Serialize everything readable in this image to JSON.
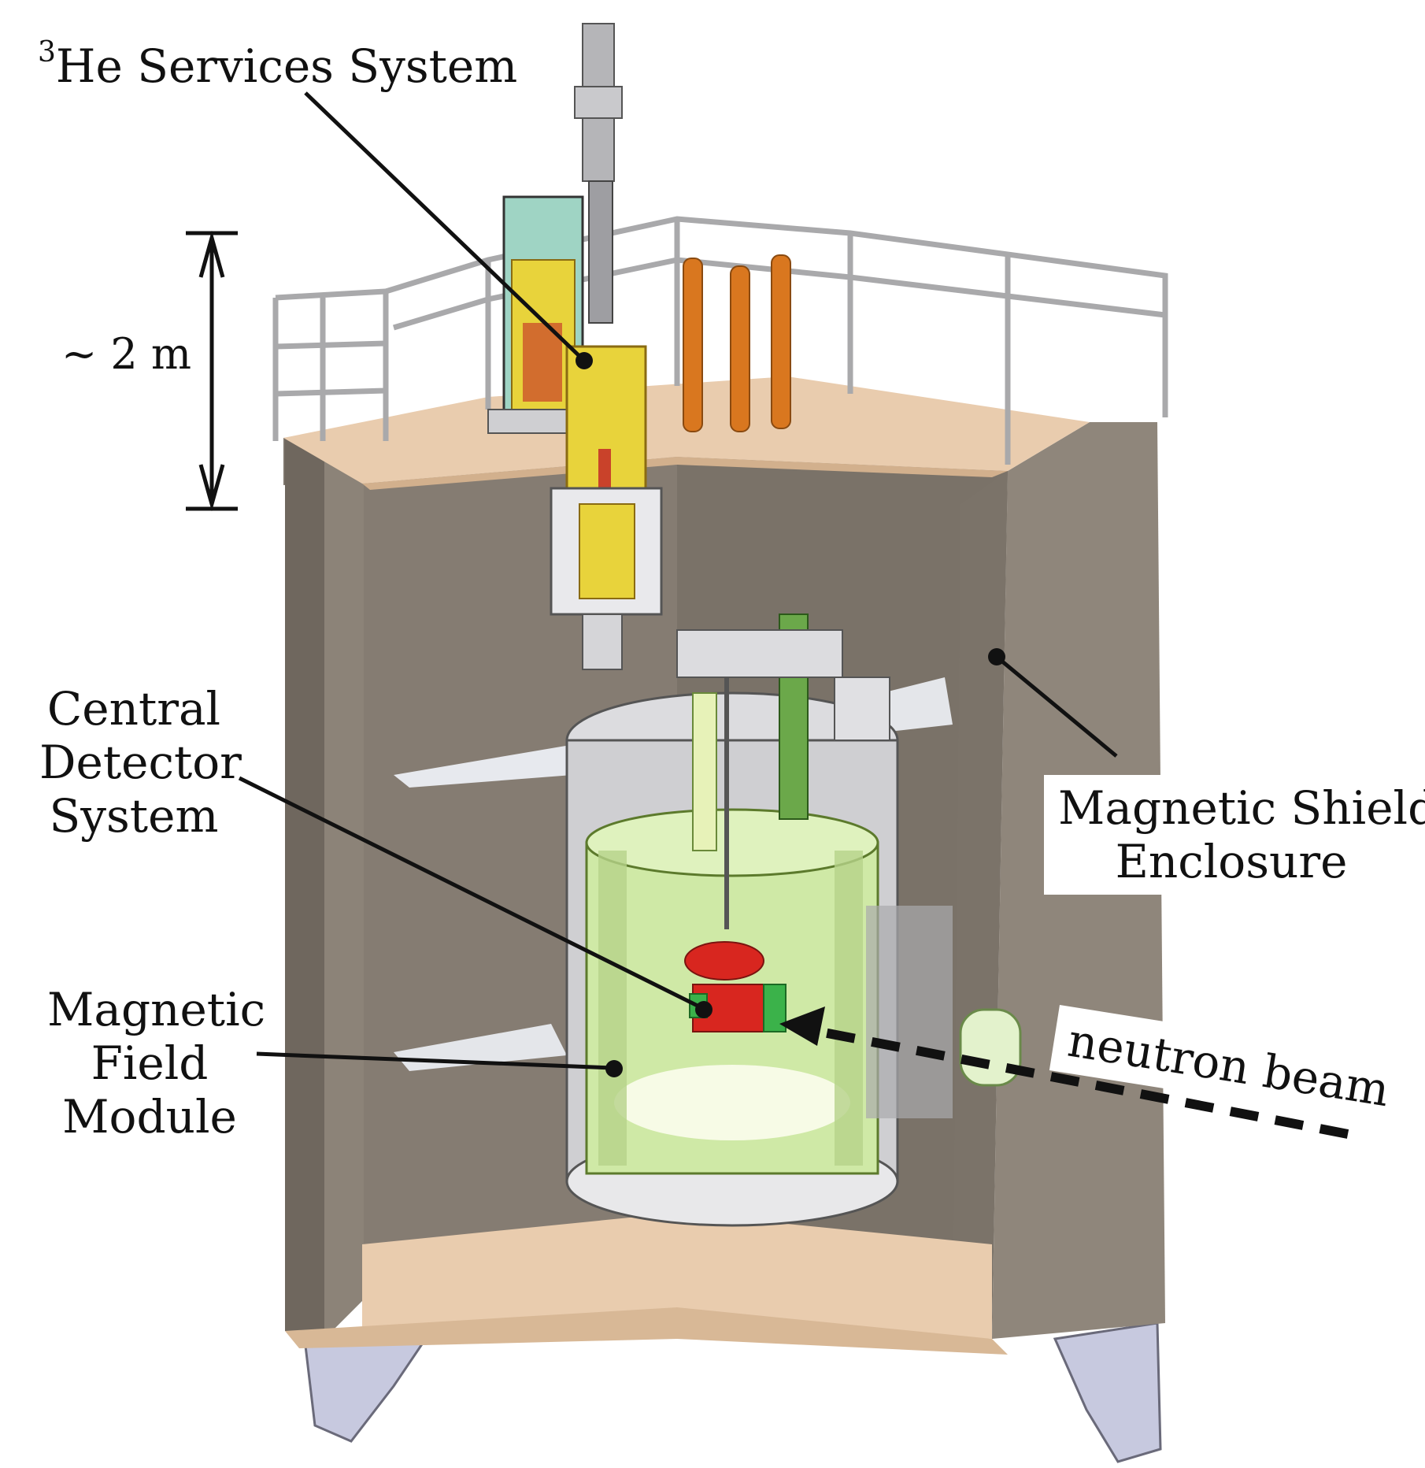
{
  "labels": {
    "he3_sup": "3",
    "he3_text": "He Services System",
    "scale": "~ 2 m",
    "central_detector": [
      "Central",
      "Detector",
      "System"
    ],
    "magnetic_field_module": [
      "Magnetic",
      "Field",
      "Module"
    ],
    "magnetic_shield": [
      "Magnetic Shield",
      "Enclosure"
    ],
    "neutron_beam": "neutron beam"
  },
  "colors": {
    "enclosure": "#8c8378",
    "enclosure_dark": "#6f675e",
    "floor": "#e9ccae",
    "railing": "#a9a9ab",
    "orange_pipes": "#d9771f",
    "cryostat": "#cfcfd2",
    "green_volume": "#cfe9a6",
    "yellow_insert": "#e8d33b",
    "red_cell": "#d8261f",
    "support_feet": "#c7c9df"
  }
}
